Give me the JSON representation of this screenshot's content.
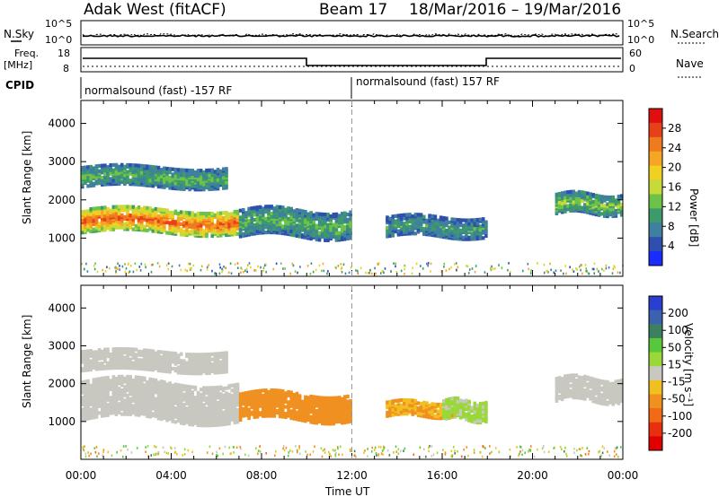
{
  "header": {
    "station": "Adak West (fitACF)",
    "beam": "Beam 17",
    "dates": "18/Mar/2016 – 19/Mar/2016"
  },
  "aux_panels": {
    "nsky_label": "N.Sky",
    "nsearch_label": "N.Search",
    "freq_label": "Freq.",
    "freq_unit": "[MHz]",
    "nave_label": "Nave",
    "cpid_label": "CPID",
    "left_ticks_top": [
      "10^5",
      "10^0"
    ],
    "right_ticks_top": [
      "10^5",
      "10^0"
    ],
    "left_ticks_freq": [
      "18",
      "8"
    ],
    "right_ticks_freq": [
      "60",
      "0"
    ],
    "cpid_segments": [
      "normalsound (fast) -157 RF",
      "normalsound (fast) 157 RF"
    ]
  },
  "axes": {
    "ylabel": "Slant Range [km]",
    "xlabel": "Time UT",
    "yticks": [
      "1000",
      "2000",
      "3000",
      "4000"
    ],
    "xticks": [
      "00:00",
      "04:00",
      "08:00",
      "12:00",
      "16:00",
      "20:00",
      "00:00"
    ]
  },
  "power_scale": {
    "label": "Power [dB]",
    "ticks": [
      "4",
      "8",
      "12",
      "16",
      "20",
      "24",
      "28"
    ],
    "colors": [
      "#1a2bff",
      "#2f4fb0",
      "#3f7fa0",
      "#3d9a6a",
      "#6dc24a",
      "#c8d93a",
      "#f0d020",
      "#f5a623",
      "#f07a1e",
      "#e8401a",
      "#e00f0f"
    ]
  },
  "velocity_scale": {
    "label": "Velocity [m s⁻¹]",
    "ticks": [
      "200",
      "100",
      "50",
      "15",
      "-15",
      "-50",
      "-100",
      "-200"
    ],
    "colors": [
      "#2a3fd0",
      "#3a62b0",
      "#3d8060",
      "#58c83a",
      "#9ad83a",
      "#c8c8c0",
      "#f0c020",
      "#f09020",
      "#f06a18",
      "#e83010",
      "#e00000"
    ]
  },
  "chart_data": [
    {
      "type": "heatmap",
      "title": "Adak West (fitACF)  Beam 17  18/Mar/2016 – 19/Mar/2016",
      "quantity": "Power [dB]",
      "xlabel": "Time UT",
      "ylabel": "Slant Range [km]",
      "xlim": [
        0,
        24
      ],
      "ylim": [
        0,
        4600
      ],
      "clim": [
        0,
        30
      ],
      "features": [
        {
          "name": "near-range band",
          "t_start": 0.0,
          "t_end": 7.0,
          "range_start": 1100,
          "range_end": 1700,
          "power_db": 24
        },
        {
          "name": "far-range band",
          "t_start": 0.0,
          "t_end": 6.5,
          "range_start": 2300,
          "range_end": 2800,
          "power_db": 10
        },
        {
          "name": "post-dawn patch",
          "t_start": 7.0,
          "t_end": 12.0,
          "range_start": 1000,
          "range_end": 1700,
          "power_db": 10
        },
        {
          "name": "afternoon patch",
          "t_start": 13.5,
          "t_end": 18.0,
          "range_start": 1000,
          "range_end": 1500,
          "power_db": 8
        },
        {
          "name": "evening patch",
          "t_start": 21.0,
          "t_end": 24.0,
          "range_start": 1600,
          "range_end": 2100,
          "power_db": 12
        }
      ]
    },
    {
      "type": "heatmap",
      "quantity": "Velocity [m s-1]",
      "xlabel": "Time UT",
      "ylabel": "Slant Range [km]",
      "xlim": [
        0,
        24
      ],
      "ylim": [
        0,
        4600
      ],
      "clim": [
        -200,
        200
      ],
      "features": [
        {
          "name": "ground scatter (low velocity)",
          "t_start": 0.0,
          "t_end": 7.0,
          "range_start": 1000,
          "range_end": 2000,
          "velocity": 0
        },
        {
          "name": "far ground scatter",
          "t_start": 0.0,
          "t_end": 6.5,
          "range_start": 2300,
          "range_end": 2800,
          "velocity": 0
        },
        {
          "name": "negative-velocity patch",
          "t_start": 7.0,
          "t_end": 12.0,
          "range_start": 1000,
          "range_end": 1700,
          "velocity": -80
        },
        {
          "name": "afternoon negative patch",
          "t_start": 13.5,
          "t_end": 16.5,
          "range_start": 1100,
          "range_end": 1500,
          "velocity": -60
        },
        {
          "name": "positive-velocity patch",
          "t_start": 16.0,
          "t_end": 18.0,
          "range_start": 1000,
          "range_end": 1500,
          "velocity": 30
        },
        {
          "name": "evening ground scatter",
          "t_start": 21.0,
          "t_end": 24.0,
          "range_start": 1500,
          "range_end": 2100,
          "velocity": 0
        }
      ]
    }
  ]
}
